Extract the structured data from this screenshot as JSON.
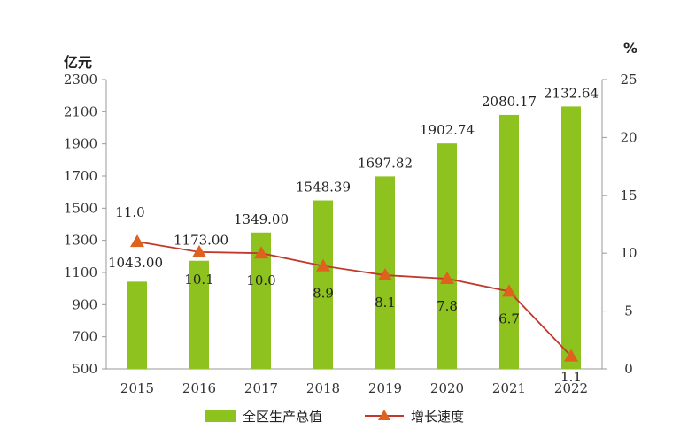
{
  "chart_data": {
    "type": "bar",
    "categories": [
      "2015",
      "2016",
      "2017",
      "2018",
      "2019",
      "2020",
      "2021",
      "2022"
    ],
    "series": [
      {
        "name": "全区生产总值",
        "type": "bar",
        "axis": "left",
        "values": [
          1043.0,
          1173.0,
          1349.0,
          1548.39,
          1697.82,
          1902.74,
          2080.17,
          2132.64
        ],
        "labels": [
          "1043.00",
          "1173.00",
          "1349.00",
          "1548.39",
          "1697.82",
          "1902.74",
          "2080.17",
          "2132.64"
        ],
        "color": "#8dc21f"
      },
      {
        "name": "增长速度",
        "type": "line",
        "axis": "right",
        "values": [
          11.0,
          10.1,
          10.0,
          8.9,
          8.1,
          7.8,
          6.7,
          1.1
        ],
        "labels": [
          "11.0",
          "10.1",
          "10.0",
          "8.9",
          "8.1",
          "7.8",
          "6.7",
          "1.1"
        ],
        "color": "#e0601e"
      }
    ],
    "y_left": {
      "label": "亿元",
      "ticks": [
        "500",
        "700",
        "900",
        "1100",
        "1300",
        "1500",
        "1700",
        "1900",
        "2100",
        "2300"
      ],
      "ylim": [
        500,
        2300
      ]
    },
    "y_right": {
      "label": "%",
      "ticks": [
        "0",
        "5",
        "10",
        "15",
        "20",
        "25"
      ],
      "ylim": [
        0,
        25
      ]
    },
    "grid": false,
    "legend_position": "bottom"
  }
}
